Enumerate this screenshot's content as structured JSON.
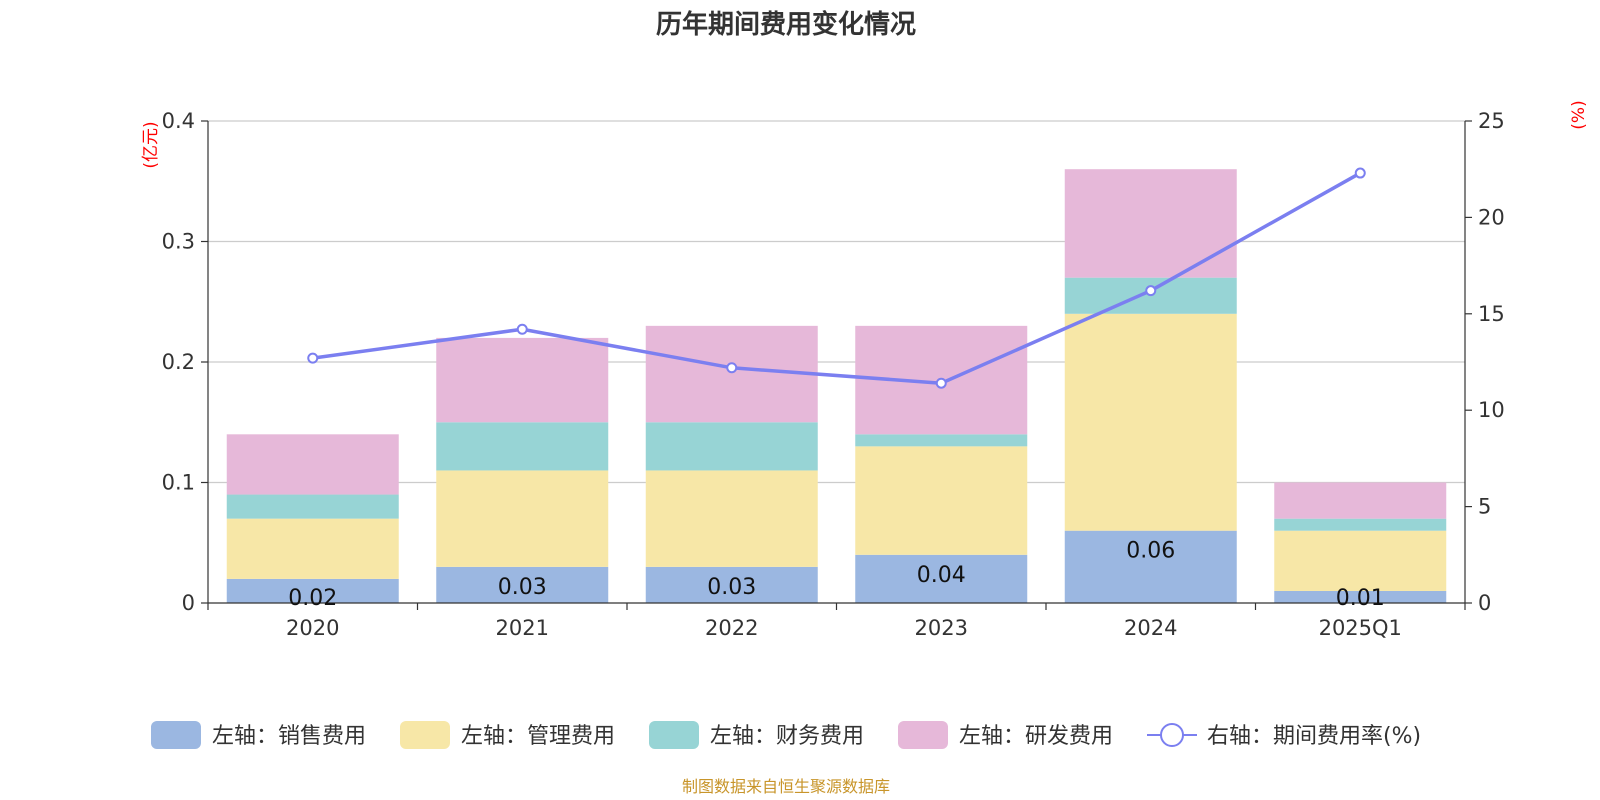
{
  "chart_data": {
    "type": "bar",
    "title": "历年期间费用变化情况",
    "categories": [
      "2020",
      "2021",
      "2022",
      "2023",
      "2024",
      "2025Q1"
    ],
    "stacked": true,
    "series": [
      {
        "name": "左轴：销售费用",
        "axis": "left",
        "color": "#9bb7e1",
        "values": [
          0.02,
          0.03,
          0.03,
          0.04,
          0.06,
          0.01
        ],
        "data_labels": [
          "0.02",
          "0.03",
          "0.03",
          "0.04",
          "0.06",
          "0.01"
        ]
      },
      {
        "name": "左轴：管理费用",
        "axis": "left",
        "color": "#f7e7a7",
        "values": [
          0.05,
          0.08,
          0.08,
          0.09,
          0.18,
          0.05
        ]
      },
      {
        "name": "左轴：财务费用",
        "axis": "left",
        "color": "#97d4d5",
        "values": [
          0.02,
          0.04,
          0.04,
          0.01,
          0.03,
          0.01
        ]
      },
      {
        "name": "左轴：研发费用",
        "axis": "left",
        "color": "#e6b8d9",
        "values": [
          0.05,
          0.07,
          0.08,
          0.09,
          0.09,
          0.03
        ]
      }
    ],
    "line_series": {
      "name": "右轴：期间费用率(%)",
      "axis": "right",
      "type": "line",
      "color": "#7b7ff0",
      "values": [
        12.7,
        14.2,
        12.2,
        11.4,
        16.2,
        22.3
      ]
    },
    "y_left": {
      "unit": "(亿元)",
      "ylim": [
        0,
        0.4
      ],
      "ticks": [
        "0",
        "0.1",
        "0.2",
        "0.3",
        "0.4"
      ],
      "tick_values": [
        0,
        0.1,
        0.2,
        0.3,
        0.4
      ]
    },
    "y_right": {
      "unit": "(%)",
      "ylim": [
        0,
        25
      ],
      "ticks": [
        "0",
        "5",
        "10",
        "15",
        "20",
        "25"
      ],
      "tick_values": [
        0,
        5,
        10,
        15,
        20,
        25
      ]
    },
    "grid": true,
    "legend_position": "bottom"
  },
  "footer": {
    "source": "制图数据来自恒生聚源数据库"
  },
  "colors": {
    "left_unit": "#ff0000",
    "right_unit": "#ff0000",
    "source": "#c8952a"
  }
}
